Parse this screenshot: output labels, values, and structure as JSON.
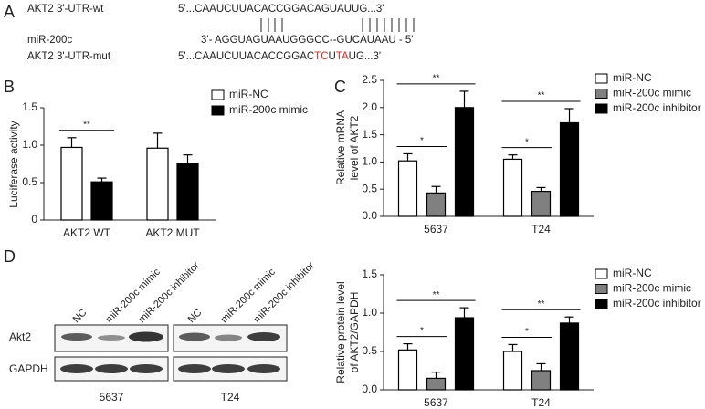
{
  "panel_labels": [
    "A",
    "B",
    "C",
    "D"
  ],
  "sequences": [
    {
      "name": "AKT2 3'-UTR-wt",
      "seq_parts": [
        {
          "text": "5'...CAAUCUUACACCGGACAGUAUUG...3'",
          "color": "#222222"
        }
      ]
    },
    {
      "name": "miR-200c",
      "seq_parts": [
        {
          "text": "3'- AGGUAGUAAUGGGCC--GUCAUAAU - 5'",
          "color": "#222222"
        }
      ]
    },
    {
      "name": "AKT2 3'-UTR-mut",
      "seq_parts": [
        {
          "text": "5'...CAAUCUUACACCGGAC",
          "color": "#222222"
        },
        {
          "text": "TC",
          "color": "#e3261c"
        },
        {
          "text": "U",
          "color": "#222222"
        },
        {
          "text": "TA",
          "color": "#e3261c"
        },
        {
          "text": "UG...3'",
          "color": "#222222"
        }
      ]
    }
  ],
  "blot": {
    "lanes": [
      "NC",
      "miR-200c mimic",
      "miR-200c inhibitor",
      "NC",
      "miR-200c mimic",
      "miR-200c inhibitor"
    ],
    "rows": [
      "Akt2",
      "GAPDH"
    ],
    "groups": [
      "5637",
      "T24"
    ]
  },
  "chart_data": [
    {
      "type": "bar",
      "ylabel": [
        "Luciferase activity"
      ],
      "categories": [
        "AKT2 WT",
        "AKT2 MUT"
      ],
      "series": [
        {
          "name": "miR-NC",
          "color": "#ffffff",
          "values": [
            0.97,
            0.96
          ],
          "errors": [
            0.13,
            0.2
          ]
        },
        {
          "name": "miR-200c mimic",
          "color": "#000000",
          "values": [
            0.51,
            0.75
          ],
          "errors": [
            0.05,
            0.12
          ]
        }
      ],
      "ylim": [
        0,
        1.5
      ],
      "yticks": [
        0,
        0.5,
        {
          "value": 1,
          "label": "1.0"
        },
        1.5
      ],
      "legend": "upper right",
      "annotations": [
        "**"
      ]
    },
    {
      "type": "bar",
      "ylabel": [
        "Relative mRNA",
        "level of AKT2"
      ],
      "categories": [
        "5637",
        "T24"
      ],
      "series": [
        {
          "name": "miR-NC",
          "color": "#ffffff",
          "values": [
            1.02,
            1.05
          ],
          "errors": [
            0.13,
            0.08
          ]
        },
        {
          "name": "miR-200c mimic",
          "color": "#808080",
          "values": [
            0.43,
            0.46
          ],
          "errors": [
            0.12,
            0.07
          ]
        },
        {
          "name": "miR-200c inhibitor",
          "color": "#000000",
          "values": [
            2.0,
            1.72
          ],
          "errors": [
            0.3,
            0.26
          ]
        }
      ],
      "ylim": [
        0,
        2.5
      ],
      "yticks": [
        {
          "value": 0,
          "label": "0.0"
        },
        0.5,
        {
          "value": 1,
          "label": "1.0"
        },
        1.5,
        {
          "value": 2,
          "label": "2.0"
        },
        2.5
      ],
      "legend": "upper right",
      "annotations": [
        "*",
        "**",
        "*",
        "**"
      ]
    },
    {
      "type": "bar",
      "ylabel": [
        "Relative protein level",
        "of AKT2/GAPDH"
      ],
      "categories": [
        "5637",
        "T24"
      ],
      "series": [
        {
          "name": "miR-NC",
          "color": "#ffffff",
          "values": [
            0.52,
            0.5
          ],
          "errors": [
            0.08,
            0.09
          ]
        },
        {
          "name": "miR-200c mimic",
          "color": "#808080",
          "values": [
            0.15,
            0.25
          ],
          "errors": [
            0.08,
            0.09
          ]
        },
        {
          "name": "miR-200c inhibitor",
          "color": "#000000",
          "values": [
            0.94,
            0.87
          ],
          "errors": [
            0.13,
            0.08
          ]
        }
      ],
      "ylim": [
        0,
        1.5
      ],
      "yticks": [
        {
          "value": 0,
          "label": "0.0"
        },
        0.5,
        {
          "value": 1,
          "label": "1.0"
        },
        1.5
      ],
      "legend": "upper right",
      "annotations": [
        "*",
        "**",
        "*",
        "**"
      ]
    }
  ]
}
